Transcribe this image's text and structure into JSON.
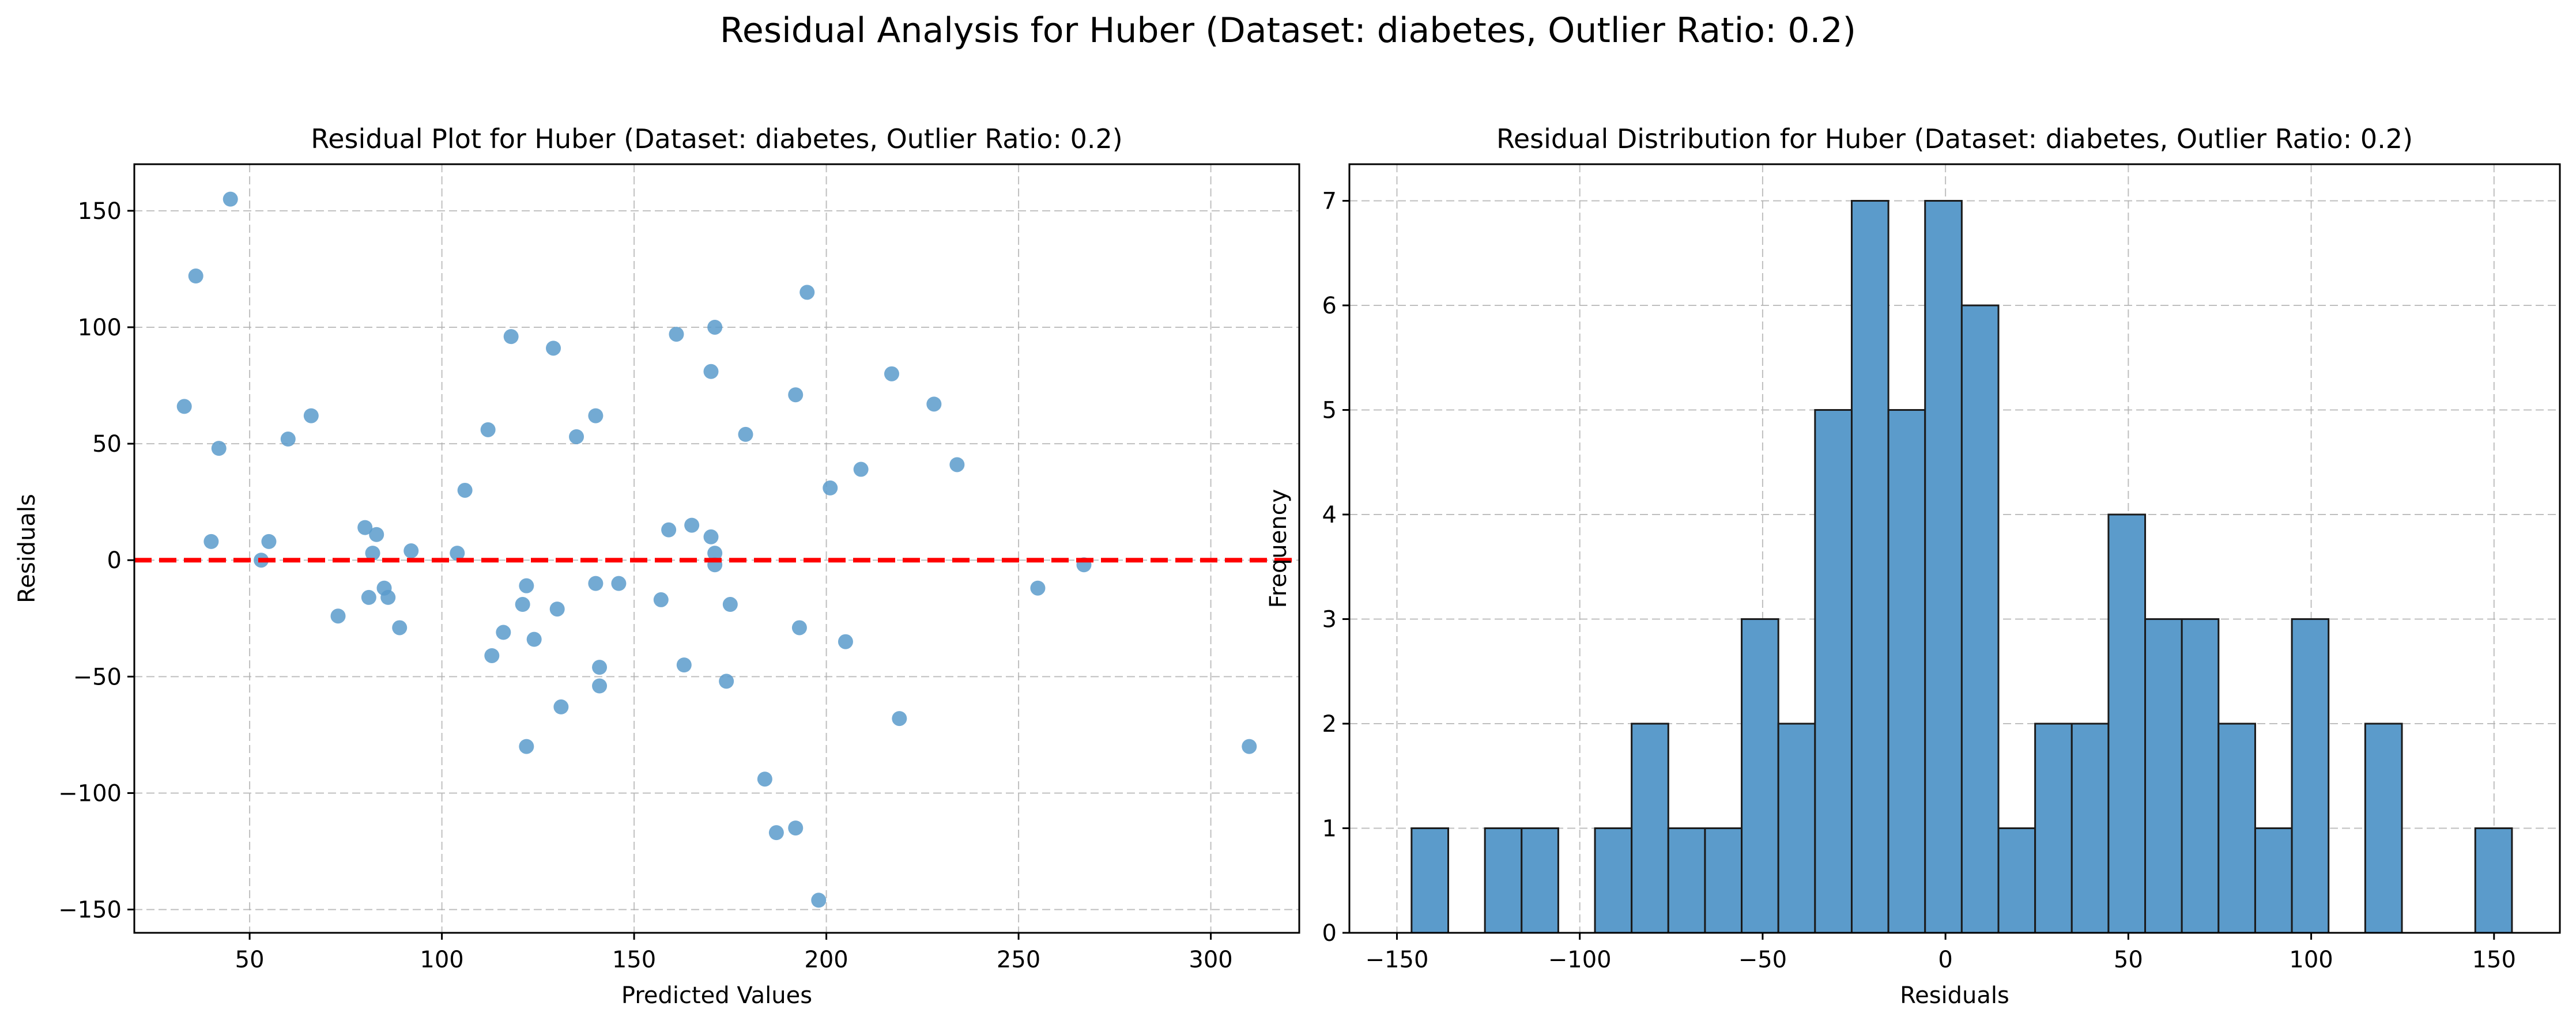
{
  "suptitle": "Residual Analysis for Huber (Dataset: diabetes, Outlier Ratio: 0.2)",
  "chart_data": [
    {
      "type": "scatter",
      "title": "Residual Plot for Huber (Dataset: diabetes, Outlier Ratio: 0.2)",
      "xlabel": "Predicted Values",
      "ylabel": "Residuals",
      "xlim": [
        20,
        323
      ],
      "ylim": [
        -160,
        170
      ],
      "xticks": [
        50,
        100,
        150,
        200,
        250,
        300
      ],
      "yticks": [
        -150,
        -100,
        -50,
        0,
        50,
        100,
        150
      ],
      "ytick_labels": [
        "−150",
        "−100",
        "−50",
        "0",
        "50",
        "100",
        "150"
      ],
      "grid": true,
      "point_color": "#5b9bcb",
      "reference_line": {
        "y": 0,
        "color": "#ff0000",
        "style": "dashed"
      },
      "points": [
        {
          "x": 33,
          "y": 66
        },
        {
          "x": 36,
          "y": 122
        },
        {
          "x": 40,
          "y": 8
        },
        {
          "x": 42,
          "y": 48
        },
        {
          "x": 45,
          "y": 155
        },
        {
          "x": 53,
          "y": 0
        },
        {
          "x": 55,
          "y": 8
        },
        {
          "x": 60,
          "y": 52
        },
        {
          "x": 66,
          "y": 62
        },
        {
          "x": 73,
          "y": -24
        },
        {
          "x": 80,
          "y": 14
        },
        {
          "x": 81,
          "y": -16
        },
        {
          "x": 82,
          "y": 3
        },
        {
          "x": 83,
          "y": 11
        },
        {
          "x": 85,
          "y": -12
        },
        {
          "x": 86,
          "y": -16
        },
        {
          "x": 89,
          "y": -29
        },
        {
          "x": 92,
          "y": 4
        },
        {
          "x": 104,
          "y": 3
        },
        {
          "x": 106,
          "y": 30
        },
        {
          "x": 112,
          "y": 56
        },
        {
          "x": 113,
          "y": -41
        },
        {
          "x": 116,
          "y": -31
        },
        {
          "x": 118,
          "y": 96
        },
        {
          "x": 121,
          "y": -19
        },
        {
          "x": 122,
          "y": -11
        },
        {
          "x": 122,
          "y": -80
        },
        {
          "x": 124,
          "y": -34
        },
        {
          "x": 129,
          "y": 91
        },
        {
          "x": 130,
          "y": -21
        },
        {
          "x": 131,
          "y": -63
        },
        {
          "x": 135,
          "y": 53
        },
        {
          "x": 140,
          "y": 62
        },
        {
          "x": 140,
          "y": -10
        },
        {
          "x": 141,
          "y": -46
        },
        {
          "x": 141,
          "y": -54
        },
        {
          "x": 146,
          "y": -10
        },
        {
          "x": 157,
          "y": -17
        },
        {
          "x": 159,
          "y": 13
        },
        {
          "x": 161,
          "y": 97
        },
        {
          "x": 163,
          "y": -45
        },
        {
          "x": 165,
          "y": 15
        },
        {
          "x": 170,
          "y": 81
        },
        {
          "x": 170,
          "y": 10
        },
        {
          "x": 171,
          "y": 3
        },
        {
          "x": 171,
          "y": -2
        },
        {
          "x": 171,
          "y": 100
        },
        {
          "x": 174,
          "y": -52
        },
        {
          "x": 175,
          "y": -19
        },
        {
          "x": 179,
          "y": 54
        },
        {
          "x": 184,
          "y": -94
        },
        {
          "x": 187,
          "y": -117
        },
        {
          "x": 192,
          "y": 71
        },
        {
          "x": 192,
          "y": -115
        },
        {
          "x": 193,
          "y": -29
        },
        {
          "x": 195,
          "y": 115
        },
        {
          "x": 198,
          "y": -146
        },
        {
          "x": 201,
          "y": 31
        },
        {
          "x": 205,
          "y": -35
        },
        {
          "x": 209,
          "y": 39
        },
        {
          "x": 217,
          "y": 80
        },
        {
          "x": 219,
          "y": -68
        },
        {
          "x": 228,
          "y": 67
        },
        {
          "x": 234,
          "y": 41
        },
        {
          "x": 255,
          "y": -12
        },
        {
          "x": 267,
          "y": -2
        },
        {
          "x": 310,
          "y": -80
        }
      ]
    },
    {
      "type": "bar",
      "subtype": "histogram",
      "title": "Residual Distribution for Huber (Dataset: diabetes, Outlier Ratio: 0.2)",
      "xlabel": "Residuals",
      "ylabel": "Frequency",
      "xlim": [
        -163,
        168
      ],
      "ylim": [
        0,
        7.35
      ],
      "xticks": [
        -150,
        -100,
        -50,
        0,
        50,
        100,
        150
      ],
      "xtick_labels": [
        "−150",
        "−100",
        "−50",
        "0",
        "50",
        "100",
        "150"
      ],
      "yticks": [
        0,
        1,
        2,
        3,
        4,
        5,
        6,
        7
      ],
      "grid": true,
      "bar_color": "#5b9bcb",
      "bin_start": -146,
      "bin_width": 10.03,
      "counts": [
        1,
        0,
        1,
        1,
        0,
        1,
        2,
        1,
        1,
        3,
        2,
        5,
        7,
        5,
        7,
        6,
        1,
        2,
        2,
        4,
        3,
        3,
        2,
        1,
        3,
        0,
        2,
        0,
        0,
        1
      ]
    }
  ]
}
